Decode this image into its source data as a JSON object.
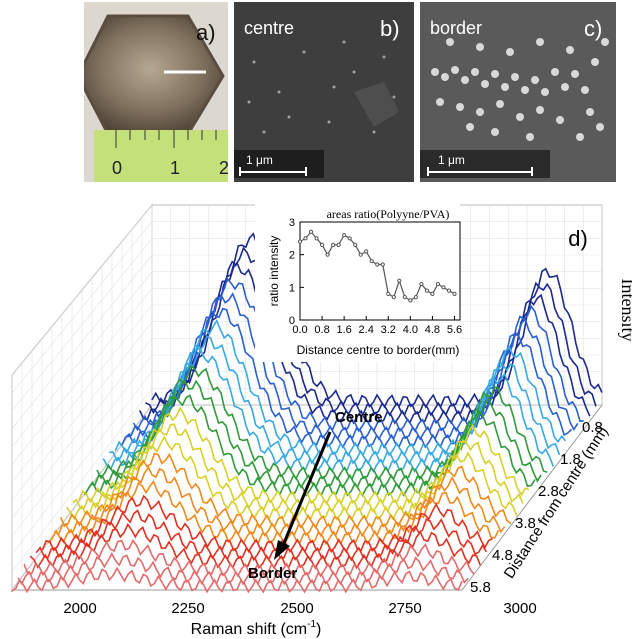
{
  "panels": {
    "a": {
      "label": "a)",
      "ruler_ticks": [
        "0",
        "1",
        "2"
      ]
    },
    "b": {
      "label": "b)",
      "region": "centre",
      "scale": "1 μm"
    },
    "c": {
      "label": "c)",
      "region": "border",
      "scale": "1 μm"
    },
    "d": {
      "label": "d)"
    }
  },
  "main_plot": {
    "xlabel": "Raman shift (cm",
    "xlabel_sup": "-1",
    "xlabel_end": ")",
    "x_ticks": [
      "2000",
      "2250",
      "2500",
      "2750",
      "3000"
    ],
    "ylabel": "Intensity",
    "zlabel": "Distance from centre (mm)",
    "z_ticks": [
      "0.8",
      "1.8",
      "2.8",
      "3.8",
      "4.8",
      "5.8"
    ],
    "annotation_top": "Centre",
    "annotation_bottom": "Border"
  },
  "inset": {
    "title": "areas ratio(Polyyne/PVA)",
    "ylabel": "ratio intensity",
    "xlabel": "Distance centre to border(mm)"
  },
  "chart_data": {
    "type": "line",
    "title": "areas ratio(Polyyne/PVA)",
    "xlabel": "Distance centre to border(mm)",
    "ylabel": "ratio intensity",
    "xlim": [
      0,
      5.8
    ],
    "ylim": [
      0,
      3
    ],
    "x_ticks": [
      "0.0",
      "0.8",
      "1.6",
      "2.4",
      "3.2",
      "4.0",
      "4.8",
      "5.6"
    ],
    "y_ticks": [
      "0",
      "1",
      "2",
      "3"
    ],
    "x": [
      0.0,
      0.2,
      0.4,
      0.6,
      0.8,
      1.0,
      1.2,
      1.4,
      1.6,
      1.8,
      2.0,
      2.2,
      2.4,
      2.6,
      2.8,
      3.0,
      3.2,
      3.4,
      3.6,
      3.8,
      4.0,
      4.2,
      4.4,
      4.6,
      4.8,
      5.0,
      5.2,
      5.4,
      5.6
    ],
    "values": [
      2.4,
      2.5,
      2.7,
      2.5,
      2.3,
      2.0,
      2.3,
      2.3,
      2.6,
      2.5,
      2.3,
      2.0,
      2.1,
      1.8,
      1.7,
      1.7,
      0.8,
      0.7,
      1.2,
      0.7,
      0.6,
      0.7,
      1.1,
      0.9,
      0.8,
      1.1,
      1.0,
      0.9,
      0.8
    ],
    "line_color": "#555555"
  }
}
